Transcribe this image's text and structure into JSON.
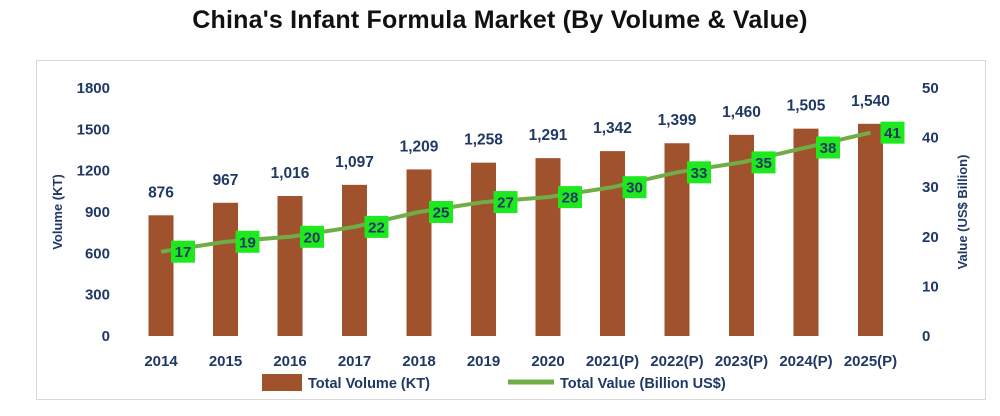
{
  "chart_data": {
    "type": "bar",
    "title": "China's Infant Formula Market (By Volume & Value)",
    "categories": [
      "2014",
      "2015",
      "2016",
      "2017",
      "2018",
      "2019",
      "2020",
      "2021(P)",
      "2022(P)",
      "2023(P)",
      "2024(P)",
      "2025(P)"
    ],
    "series": [
      {
        "name": "Total Volume (KT)",
        "type": "bar",
        "axis": "left",
        "color": "#a0522d",
        "values": [
          876,
          967,
          1016,
          1097,
          1209,
          1258,
          1291,
          1342,
          1399,
          1460,
          1505,
          1540
        ],
        "labels": [
          "876",
          "967",
          "1,016",
          "1,097",
          "1,209",
          "1,258",
          "1,291",
          "1,342",
          "1,399",
          "1,460",
          "1,505",
          "1,540"
        ]
      },
      {
        "name": "Total Value (Billion US$)",
        "type": "line",
        "axis": "right",
        "color": "#70ad47",
        "label_bg": "#1ee81e",
        "values": [
          17,
          19,
          20,
          22,
          25,
          27,
          28,
          30,
          33,
          35,
          38,
          41
        ],
        "labels": [
          "17",
          "19",
          "20",
          "22",
          "25",
          "27",
          "28",
          "30",
          "33",
          "35",
          "38",
          "41"
        ]
      }
    ],
    "ylabel": "Volume (KT)",
    "ylabel_right": "Value (US$ Billion)",
    "ylim": [
      0,
      1800
    ],
    "ylim_right": [
      0,
      50
    ],
    "yticks": [
      "0",
      "300",
      "600",
      "900",
      "1200",
      "1500",
      "1800"
    ],
    "yticks_right": [
      "0",
      "10",
      "20",
      "30",
      "40",
      "50"
    ],
    "grid": false,
    "legend_position": "bottom"
  }
}
